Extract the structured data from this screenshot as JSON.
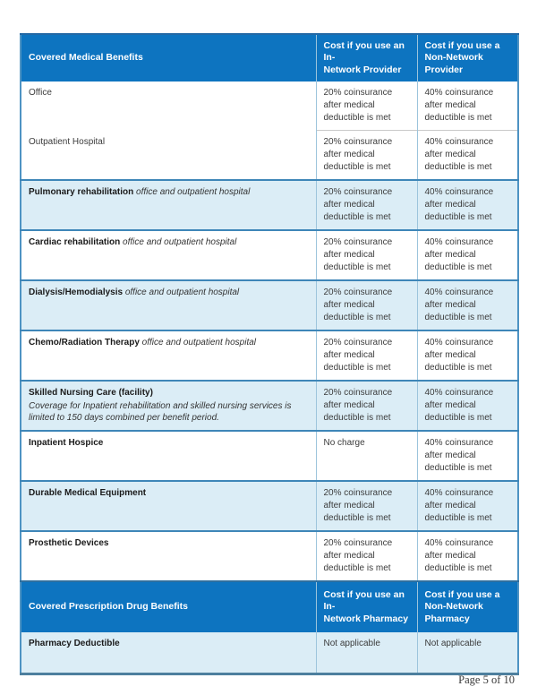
{
  "colors": {
    "header_bg": "#0d74c0",
    "header_top": "#2268a5",
    "row_shaded": "#dbedf6",
    "border_major": "#3e86b8",
    "border_minor": "#c9c9c9",
    "border_vert": "#9cc4dc",
    "border_outer": "#4e93c3",
    "border_bottom": "#4d7f9e",
    "text_body": "#3c3c3c",
    "text_name": "#1a1a1a",
    "footer_text": "#3a3a3a"
  },
  "tables": [
    {
      "id": "medical",
      "headers": [
        "Covered Medical Benefits",
        "Cost if you use an In-\nNetwork Provider",
        "Cost if you use a\nNon-Network\nProvider"
      ],
      "rows": [
        {
          "name": "Office",
          "bold": false,
          "suffix": "",
          "note": "",
          "in_network": "20% coinsurance after medical deductible is met",
          "non_network": "40% coinsurance after medical deductible is met",
          "shaded": false,
          "divider": "none"
        },
        {
          "name": "Outpatient Hospital",
          "bold": false,
          "suffix": "",
          "note": "",
          "in_network": "20% coinsurance after medical deductible is met",
          "non_network": "40% coinsurance after medical deductible is met",
          "shaded": false,
          "divider": "minor"
        },
        {
          "name": "Pulmonary rehabilitation",
          "bold": true,
          "suffix": "office and outpatient hospital",
          "note": "",
          "in_network": "20% coinsurance after medical deductible is met",
          "non_network": "40% coinsurance after medical deductible is met",
          "shaded": true,
          "divider": "major"
        },
        {
          "name": "Cardiac rehabilitation",
          "bold": true,
          "suffix": "office and outpatient hospital",
          "note": "",
          "in_network": "20% coinsurance after medical deductible is met",
          "non_network": "40% coinsurance after medical deductible is met",
          "shaded": false,
          "divider": "major"
        },
        {
          "name": "Dialysis/Hemodialysis",
          "bold": true,
          "suffix": "office and outpatient hospital",
          "note": "",
          "in_network": "20% coinsurance after medical deductible is met",
          "non_network": "40% coinsurance after medical deductible is met",
          "shaded": true,
          "divider": "major"
        },
        {
          "name": "Chemo/Radiation Therapy",
          "bold": true,
          "suffix": "office and outpatient hospital",
          "note": "",
          "in_network": "20% coinsurance after medical deductible is met",
          "non_network": "40% coinsurance after medical deductible is met",
          "shaded": false,
          "divider": "major"
        },
        {
          "name": "Skilled Nursing Care (facility)",
          "bold": true,
          "suffix": "",
          "note": "Coverage for Inpatient rehabilitation and skilled nursing services is limited to 150 days combined per benefit period.",
          "in_network": "20% coinsurance after medical deductible is met",
          "non_network": "40% coinsurance after medical deductible is met",
          "shaded": true,
          "divider": "major"
        },
        {
          "name": "Inpatient Hospice",
          "bold": true,
          "suffix": "",
          "note": "",
          "in_network": "No charge",
          "non_network": "40% coinsurance after medical deductible is met",
          "shaded": false,
          "divider": "major"
        },
        {
          "name": "Durable Medical Equipment",
          "bold": true,
          "suffix": "",
          "note": "",
          "in_network": "20% coinsurance after medical deductible is met",
          "non_network": "40% coinsurance after medical deductible is met",
          "shaded": true,
          "divider": "major"
        },
        {
          "name": "Prosthetic Devices",
          "bold": true,
          "suffix": "",
          "note": "",
          "in_network": "20% coinsurance after medical deductible is met",
          "non_network": "40% coinsurance after medical deductible is met",
          "shaded": false,
          "divider": "major"
        }
      ]
    },
    {
      "id": "pharmacy",
      "headers": [
        "Covered Prescription Drug Benefits",
        "Cost if you use an In-\nNetwork Pharmacy",
        "Cost if you use a\nNon-Network\nPharmacy"
      ],
      "rows": [
        {
          "name": "Pharmacy Deductible",
          "bold": true,
          "suffix": "",
          "note": "",
          "in_network": "Not applicable",
          "non_network": "Not applicable",
          "shaded": true,
          "divider": "none"
        }
      ]
    }
  ],
  "footer": {
    "page_label": "Page 5 of 10"
  }
}
